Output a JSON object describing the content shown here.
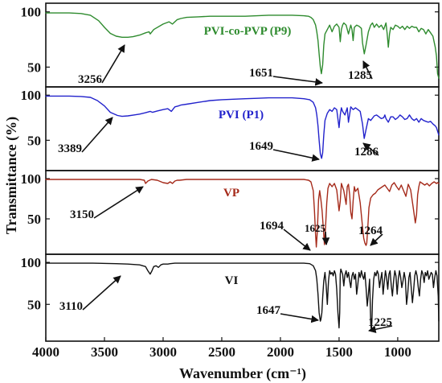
{
  "chart_data": {
    "type": "line",
    "xlabel": "Wavenumber (cm⁻¹)",
    "ylabel": "Transmittance (%)",
    "xlim": [
      4000,
      650
    ],
    "x_ticks": [
      "4000",
      "3500",
      "3000",
      "2500",
      "2000",
      "1500",
      "1000"
    ],
    "x_tick_values": [
      4000,
      3500,
      3000,
      2500,
      2000,
      1500,
      1000
    ],
    "grid": false,
    "series": [
      {
        "name": "PVI-co-PVP (P9)",
        "color": "#2e8b2e",
        "ylim": [
          35,
          102
        ],
        "y_ticks": [
          "100",
          "50"
        ],
        "y_tick_values": [
          100,
          50
        ],
        "x": [
          4000,
          3900,
          3800,
          3700,
          3620,
          3550,
          3500,
          3450,
          3400,
          3350,
          3300,
          3256,
          3200,
          3150,
          3120,
          3110,
          3080,
          3000,
          2950,
          2920,
          2880,
          2850,
          2800,
          2700,
          2600,
          2500,
          2400,
          2300,
          2200,
          2100,
          2000,
          1900,
          1800,
          1760,
          1740,
          1720,
          1700,
          1690,
          1680,
          1670,
          1660,
          1651,
          1640,
          1630,
          1620,
          1600,
          1580,
          1560,
          1540,
          1520,
          1500,
          1490,
          1480,
          1470,
          1460,
          1440,
          1420,
          1400,
          1390,
          1380,
          1370,
          1350,
          1330,
          1310,
          1300,
          1285,
          1270,
          1250,
          1230,
          1215,
          1200,
          1180,
          1160,
          1140,
          1120,
          1100,
          1090,
          1080,
          1070,
          1060,
          1040,
          1020,
          1000,
          980,
          960,
          940,
          920,
          900,
          880,
          860,
          840,
          820,
          800,
          780,
          760,
          740,
          720,
          700,
          680,
          670,
          660,
          650
        ],
        "values": [
          99,
          99,
          99,
          98.5,
          97,
          92,
          86,
          80.5,
          78,
          77,
          77,
          77.5,
          79,
          81,
          82,
          80,
          84,
          89,
          91,
          89,
          93,
          94,
          95,
          95.5,
          96,
          96,
          96,
          96,
          96.5,
          97,
          97,
          97,
          96.5,
          96,
          95,
          93,
          88,
          82,
          74,
          62,
          50,
          44,
          52,
          70,
          80,
          84,
          88,
          82,
          87,
          89,
          86,
          73,
          84,
          88,
          90,
          88,
          80,
          88,
          84,
          74,
          86,
          88,
          87,
          85,
          72,
          62,
          70,
          82,
          88,
          90,
          86,
          89,
          86,
          88,
          84,
          90,
          80,
          68,
          80,
          86,
          84,
          88,
          87,
          85,
          87,
          84,
          87,
          85,
          87,
          86,
          86,
          82,
          85,
          84,
          80,
          84,
          81,
          78,
          68,
          60,
          44,
          40
        ]
      },
      {
        "name": "PVI (P1)",
        "color": "#2222cc",
        "ylim": [
          20,
          102
        ],
        "y_ticks": [
          "100",
          "50"
        ],
        "y_tick_values": [
          100,
          50
        ],
        "x": [
          4000,
          3900,
          3800,
          3700,
          3620,
          3560,
          3500,
          3450,
          3389,
          3350,
          3300,
          3250,
          3200,
          3150,
          3110,
          3090,
          3050,
          3000,
          2960,
          2930,
          2900,
          2870,
          2850,
          2800,
          2700,
          2600,
          2500,
          2400,
          2300,
          2200,
          2100,
          2000,
          1900,
          1800,
          1750,
          1720,
          1700,
          1690,
          1680,
          1670,
          1660,
          1649,
          1640,
          1630,
          1620,
          1600,
          1580,
          1560,
          1540,
          1520,
          1500,
          1490,
          1480,
          1470,
          1450,
          1430,
          1420,
          1400,
          1380,
          1360,
          1340,
          1320,
          1300,
          1286,
          1270,
          1250,
          1230,
          1200,
          1180,
          1160,
          1140,
          1120,
          1110,
          1100,
          1080,
          1060,
          1040,
          1020,
          1000,
          980,
          960,
          940,
          920,
          900,
          880,
          860,
          840,
          820,
          800,
          780,
          760,
          740,
          720,
          700,
          680,
          670,
          660,
          650
        ],
        "values": [
          99,
          99,
          99,
          98.5,
          97.5,
          94,
          88,
          81,
          77.5,
          76.5,
          77,
          78,
          79,
          80.5,
          82,
          81,
          82.5,
          84,
          85,
          82,
          87,
          88,
          89,
          90,
          92,
          94,
          95,
          95.5,
          96,
          96.5,
          97,
          97,
          97,
          96,
          95,
          92,
          86,
          78,
          66,
          50,
          35,
          30,
          36,
          56,
          72,
          80,
          84,
          82,
          86,
          84,
          64,
          78,
          86,
          82,
          78,
          86,
          70,
          87,
          84,
          86,
          84,
          82,
          68,
          52,
          62,
          74,
          72,
          77,
          78,
          76,
          74,
          75,
          78,
          74,
          70,
          76,
          76,
          73,
          75,
          78,
          76,
          73,
          74,
          78,
          74,
          72,
          74,
          70,
          74,
          72,
          71,
          70,
          71,
          68,
          66,
          64,
          60,
          56
        ]
      },
      {
        "name": "VP",
        "color": "#a52a1a",
        "ylim": [
          10,
          102
        ],
        "y_ticks": [
          "100",
          "50"
        ],
        "y_tick_values": [
          100,
          50
        ],
        "x": [
          4000,
          3800,
          3600,
          3400,
          3200,
          3160,
          3150,
          3130,
          3100,
          3050,
          3000,
          2960,
          2940,
          2920,
          2900,
          2880,
          2860,
          2800,
          2600,
          2400,
          2200,
          2000,
          1900,
          1800,
          1760,
          1740,
          1720,
          1710,
          1700,
          1694,
          1685,
          1675,
          1665,
          1655,
          1645,
          1635,
          1625,
          1615,
          1605,
          1595,
          1580,
          1560,
          1540,
          1520,
          1500,
          1490,
          1480,
          1460,
          1440,
          1430,
          1420,
          1410,
          1400,
          1390,
          1380,
          1370,
          1360,
          1340,
          1320,
          1300,
          1290,
          1280,
          1270,
          1264,
          1255,
          1245,
          1230,
          1210,
          1190,
          1170,
          1150,
          1130,
          1110,
          1090,
          1070,
          1050,
          1030,
          1010,
          990,
          970,
          950,
          930,
          910,
          890,
          870,
          850,
          840,
          830,
          820,
          810,
          790,
          770,
          750,
          730,
          710,
          690,
          670,
          660,
          650
        ],
        "values": [
          99,
          99,
          99,
          99,
          99,
          98,
          94,
          97,
          99,
          98,
          95,
          94,
          96,
          94,
          97,
          98,
          98,
          99,
          99,
          99,
          99,
          99,
          99,
          99,
          98,
          96,
          85,
          60,
          30,
          15,
          35,
          74,
          85,
          74,
          60,
          40,
          18,
          40,
          70,
          88,
          94,
          90,
          94,
          86,
          60,
          72,
          94,
          85,
          68,
          90,
          93,
          80,
          58,
          50,
          72,
          90,
          84,
          88,
          70,
          40,
          26,
          20,
          17,
          20,
          40,
          64,
          76,
          80,
          82,
          86,
          88,
          90,
          92,
          88,
          84,
          92,
          95,
          90,
          86,
          92,
          85,
          78,
          93,
          86,
          66,
          45,
          55,
          80,
          90,
          96,
          94,
          92,
          94,
          91,
          94,
          96,
          94,
          95,
          94
        ]
      },
      {
        "name": "VI",
        "color": "#111111",
        "ylim": [
          10,
          102
        ],
        "y_ticks": [
          "100",
          "50"
        ],
        "y_tick_values": [
          100,
          50
        ],
        "x": [
          4000,
          3800,
          3600,
          3400,
          3300,
          3200,
          3150,
          3130,
          3110,
          3095,
          3080,
          3060,
          3040,
          3020,
          3000,
          2980,
          2960,
          2940,
          2900,
          2800,
          2600,
          2400,
          2200,
          2000,
          1900,
          1800,
          1750,
          1720,
          1700,
          1690,
          1680,
          1670,
          1660,
          1655,
          1647,
          1640,
          1630,
          1620,
          1610,
          1600,
          1590,
          1580,
          1570,
          1560,
          1550,
          1540,
          1530,
          1520,
          1510,
          1500,
          1495,
          1490,
          1485,
          1480,
          1470,
          1460,
          1450,
          1440,
          1430,
          1420,
          1410,
          1400,
          1390,
          1380,
          1370,
          1360,
          1350,
          1340,
          1330,
          1320,
          1310,
          1300,
          1290,
          1280,
          1270,
          1260,
          1250,
          1240,
          1235,
          1230,
          1225,
          1220,
          1215,
          1205,
          1195,
          1185,
          1175,
          1165,
          1155,
          1145,
          1135,
          1125,
          1115,
          1105,
          1095,
          1085,
          1075,
          1065,
          1055,
          1045,
          1035,
          1025,
          1015,
          1005,
          995,
          985,
          975,
          965,
          955,
          945,
          935,
          925,
          915,
          905,
          895,
          885,
          875,
          865,
          855,
          845,
          835,
          825,
          815,
          805,
          795,
          785,
          775,
          765,
          755,
          745,
          735,
          725,
          715,
          705,
          695,
          685,
          675,
          665,
          655,
          650
        ],
        "values": [
          99,
          99,
          99,
          98.5,
          98,
          97,
          95,
          90,
          86,
          90,
          95,
          96,
          94,
          97,
          98,
          98,
          98,
          98.5,
          99,
          99,
          99,
          99,
          99,
          99,
          99,
          99,
          98.5,
          96,
          90,
          80,
          62,
          40,
          30,
          32,
          40,
          58,
          78,
          88,
          72,
          50,
          78,
          90,
          86,
          88,
          84,
          90,
          86,
          68,
          40,
          22,
          40,
          86,
          92,
          90,
          86,
          72,
          85,
          90,
          82,
          88,
          78,
          70,
          84,
          88,
          80,
          86,
          62,
          74,
          88,
          82,
          90,
          84,
          80,
          88,
          70,
          48,
          62,
          80,
          55,
          28,
          18,
          30,
          55,
          80,
          88,
          84,
          90,
          86,
          70,
          80,
          88,
          62,
          76,
          90,
          82,
          68,
          86,
          90,
          72,
          60,
          78,
          90,
          84,
          62,
          80,
          90,
          82,
          70,
          78,
          88,
          80,
          50,
          62,
          82,
          88,
          70,
          52,
          66,
          84,
          90,
          84,
          70,
          60,
          80,
          90,
          86,
          76,
          88,
          84,
          90,
          80,
          84,
          88,
          86,
          70,
          82,
          90,
          84,
          60,
          30
        ]
      }
    ],
    "annotations": [
      {
        "panel": 0,
        "text": "3256",
        "x": 3256
      },
      {
        "panel": 0,
        "text": "1651",
        "x": 1651
      },
      {
        "panel": 0,
        "text": "1285",
        "x": 1285
      },
      {
        "panel": 1,
        "text": "3389",
        "x": 3389
      },
      {
        "panel": 1,
        "text": "1649",
        "x": 1649
      },
      {
        "panel": 1,
        "text": "1286",
        "x": 1286
      },
      {
        "panel": 2,
        "text": "3150",
        "x": 3150
      },
      {
        "panel": 2,
        "text": "1694",
        "x": 1694
      },
      {
        "panel": 2,
        "text": "1625",
        "x": 1625
      },
      {
        "panel": 2,
        "text": "1264",
        "x": 1264
      },
      {
        "panel": 3,
        "text": "3110",
        "x": 3110
      },
      {
        "panel": 3,
        "text": "1647",
        "x": 1647
      },
      {
        "panel": 3,
        "text": "1225",
        "x": 1225
      }
    ]
  }
}
